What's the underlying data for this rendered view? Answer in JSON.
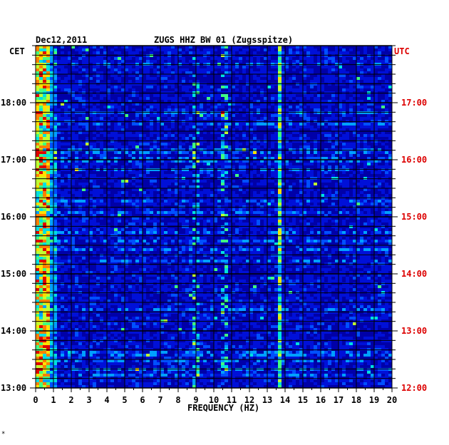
{
  "header": {
    "date": "Dec12,2011",
    "station": "ZUGS HHZ BW 01 (Zugsspitze)",
    "left_timezone": "CET",
    "right_timezone": "UTC"
  },
  "footer": {
    "mark": "*"
  },
  "colors": {
    "background": "#0000a8",
    "grid": "#000000",
    "utc_labels": "#dd0000",
    "palette": [
      "#0000a0",
      "#0010d8",
      "#0050ff",
      "#00a0ff",
      "#00e0e0",
      "#40ff80",
      "#c0ff30",
      "#ffe000",
      "#ff8000",
      "#e00000"
    ]
  },
  "chart_data": {
    "type": "heatmap",
    "title": "ZUGS HHZ BW 01 (Zugsspitze)",
    "date": "Dec12,2011",
    "xlabel": "FREQUENCY (HZ)",
    "xlim": [
      0,
      20
    ],
    "x_ticks": [
      "0",
      "1",
      "2",
      "3",
      "4",
      "5",
      "6",
      "7",
      "8",
      "9",
      "10",
      "11",
      "12",
      "13",
      "14",
      "15",
      "16",
      "17",
      "18",
      "19",
      "20"
    ],
    "y_range_cet": [
      "13:00",
      "18:00+"
    ],
    "left_axis_label": "CET",
    "left_ticks": [
      "18:00",
      "17:00",
      "16:00",
      "15:00",
      "14:00",
      "13:00"
    ],
    "right_axis_label": "UTC",
    "right_ticks": [
      "17:00",
      "16:00",
      "15:00",
      "14:00",
      "13:00",
      "12:00"
    ],
    "grid": true,
    "features": [
      {
        "description": "persistent high energy at low frequency",
        "freq_hz": [
          0.1,
          0.8
        ],
        "level": "high"
      },
      {
        "description": "narrow spectral line",
        "freq_hz": 13.7,
        "level": "medium-high"
      },
      {
        "description": "intermittent peaks",
        "freq_hz": 9.0,
        "level": "medium"
      },
      {
        "description": "intermittent peaks",
        "freq_hz": 10.6,
        "level": "medium"
      }
    ]
  }
}
